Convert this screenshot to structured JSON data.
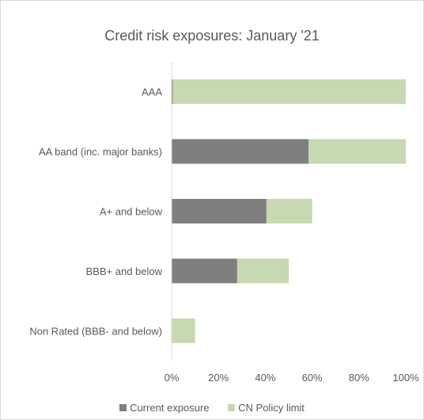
{
  "chart_data": {
    "type": "bar",
    "orientation": "horizontal",
    "stacked": true,
    "title": "Credit risk exposures: January '21",
    "categories": [
      "AAA",
      "AA band (inc. major banks)",
      "A+ and below",
      "BBB+ and below",
      "Non Rated (BBB- and below)"
    ],
    "series": [
      {
        "name": "Current exposure",
        "color": "#7f7f7f",
        "values": [
          0.5,
          58.5,
          40.5,
          28,
          0
        ]
      },
      {
        "name": "CN Policy limit",
        "color": "#c6d9b2",
        "values": [
          99.5,
          41.5,
          19.5,
          22,
          10
        ]
      }
    ],
    "xlim": [
      0,
      100
    ],
    "xticks": [
      "0%",
      "20%",
      "40%",
      "60%",
      "80%",
      "100%"
    ],
    "xlabel": "",
    "ylabel": "",
    "gridlines": false,
    "legend_position": "bottom"
  }
}
